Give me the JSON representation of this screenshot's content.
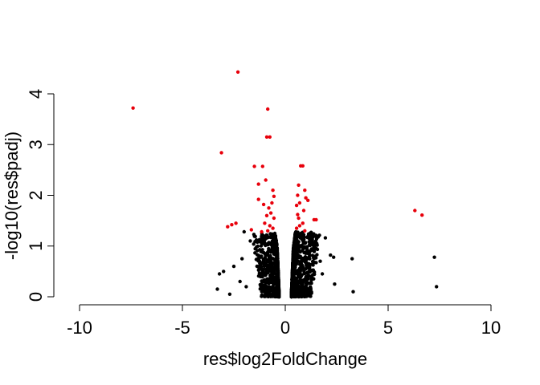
{
  "chart_data": {
    "type": "scatter",
    "title": "",
    "xlabel": "res$log2FoldChange",
    "ylabel": "-log10(res$padj)",
    "xlim": [
      -10,
      10
    ],
    "ylim": [
      0,
      4.45
    ],
    "xticks": [
      -10,
      -5,
      0,
      5,
      10
    ],
    "yticks": [
      0,
      1,
      2,
      3,
      4
    ],
    "xtick_labels": [
      "-10",
      "-5",
      "0",
      "5",
      "10"
    ],
    "ytick_labels": [
      "0",
      "1",
      "2",
      "3",
      "4"
    ],
    "grid": false,
    "legend": "none",
    "colors": {
      "significant": "#e8000b",
      "not_significant": "#000000"
    },
    "series": [
      {
        "color": "#e8000b",
        "points": [
          [
            -7.4,
            3.72
          ],
          [
            -2.3,
            4.43
          ],
          [
            -3.1,
            2.84
          ],
          [
            -0.85,
            3.7
          ],
          [
            -0.9,
            3.15
          ],
          [
            -0.75,
            3.15
          ],
          [
            -1.5,
            2.57
          ],
          [
            -1.1,
            2.57
          ],
          [
            -1.3,
            2.22
          ],
          [
            -0.95,
            2.3
          ],
          [
            -0.6,
            2.1
          ],
          [
            -0.55,
            1.98
          ],
          [
            -0.65,
            1.85
          ],
          [
            -1.05,
            1.82
          ],
          [
            -0.8,
            1.75
          ],
          [
            -1.3,
            1.92
          ],
          [
            -0.7,
            1.65
          ],
          [
            -0.9,
            1.6
          ],
          [
            -0.55,
            1.55
          ],
          [
            -1.0,
            1.45
          ],
          [
            -0.75,
            1.4
          ],
          [
            -0.6,
            1.35
          ],
          [
            -2.4,
            1.45
          ],
          [
            -2.6,
            1.42
          ],
          [
            -2.8,
            1.38
          ],
          [
            -1.65,
            1.32
          ],
          [
            -1.15,
            1.28
          ],
          [
            -0.85,
            1.3
          ],
          [
            0.75,
            2.58
          ],
          [
            0.85,
            2.58
          ],
          [
            0.65,
            2.2
          ],
          [
            0.95,
            2.1
          ],
          [
            0.6,
            2.0
          ],
          [
            1.0,
            1.95
          ],
          [
            1.1,
            1.9
          ],
          [
            0.7,
            1.85
          ],
          [
            0.55,
            1.8
          ],
          [
            0.9,
            1.7
          ],
          [
            0.6,
            1.62
          ],
          [
            0.65,
            1.55
          ],
          [
            1.4,
            1.52
          ],
          [
            1.5,
            1.52
          ],
          [
            0.85,
            1.45
          ],
          [
            0.7,
            1.4
          ],
          [
            0.55,
            1.35
          ],
          [
            0.95,
            1.3
          ],
          [
            6.3,
            1.7
          ],
          [
            6.65,
            1.61
          ]
        ]
      },
      {
        "color": "#000000",
        "points": [
          [
            7.25,
            0.78
          ],
          [
            7.35,
            0.2
          ],
          [
            3.25,
            0.75
          ],
          [
            3.3,
            0.1
          ],
          [
            1.95,
            1.16
          ],
          [
            2.2,
            0.82
          ],
          [
            2.35,
            0.78
          ],
          [
            2.4,
            0.25
          ],
          [
            -3.2,
            0.45
          ],
          [
            -3.3,
            0.15
          ],
          [
            -3.0,
            0.5
          ],
          [
            -2.7,
            0.05
          ],
          [
            -2.2,
            0.3
          ],
          [
            -1.9,
            0.2
          ],
          [
            -1.7,
            1.1
          ],
          [
            -2.0,
            1.28
          ],
          [
            -1.4,
            0.98
          ],
          [
            1.7,
            0.7
          ],
          [
            1.8,
            0.45
          ],
          [
            1.5,
            0.95
          ],
          [
            -2.5,
            0.6
          ],
          [
            -2.1,
            0.75
          ]
        ],
        "cloud": {
          "description_free": true,
          "neg_branch": {
            "x_min": -1.6,
            "x_max": -0.35,
            "y_max": 1.25
          },
          "pos_branch": {
            "x_min": 0.35,
            "x_max": 1.7,
            "y_max": 1.28
          }
        }
      }
    ]
  }
}
